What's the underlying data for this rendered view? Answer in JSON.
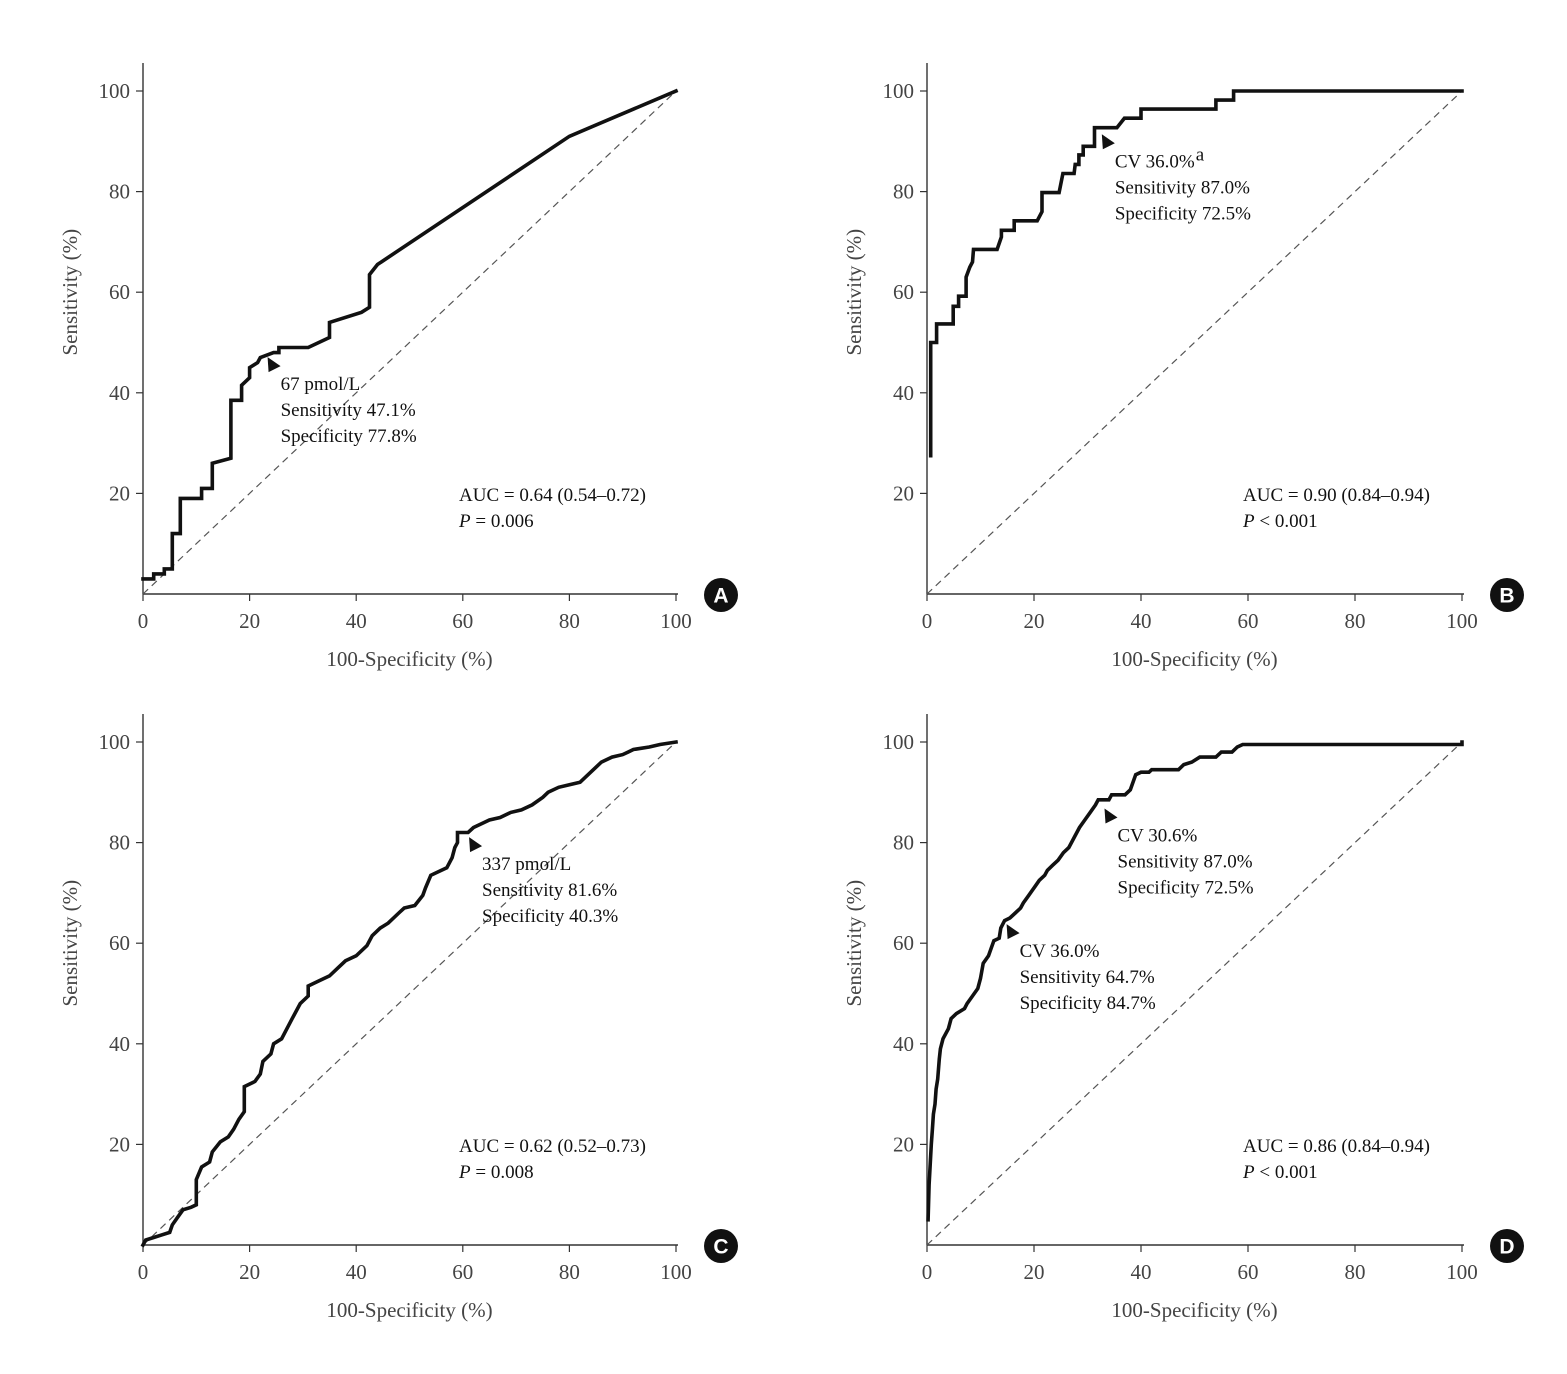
{
  "chart_data": [
    {
      "panel_label": "A",
      "type": "line",
      "xlabel": "100-Specificity (%)",
      "ylabel": "Sensitivity (%)",
      "xlim": [
        0,
        100
      ],
      "ylim": [
        0,
        100
      ],
      "xticks": [
        "0",
        "20",
        "40",
        "60",
        "80",
        "100"
      ],
      "yticks": [
        "20",
        "40",
        "60",
        "80",
        "100"
      ],
      "reference_line": [
        [
          0,
          0
        ],
        [
          100,
          100
        ]
      ],
      "roc": [
        [
          0,
          3
        ],
        [
          2,
          3
        ],
        [
          2,
          4
        ],
        [
          4,
          4
        ],
        [
          4,
          5
        ],
        [
          5.5,
          5
        ],
        [
          5.5,
          12
        ],
        [
          7,
          12
        ],
        [
          7,
          19
        ],
        [
          11,
          19
        ],
        [
          11,
          21
        ],
        [
          13,
          21
        ],
        [
          13,
          26
        ],
        [
          16.5,
          27
        ],
        [
          16.5,
          38.5
        ],
        [
          18.5,
          38.5
        ],
        [
          18.5,
          41.5
        ],
        [
          20,
          43
        ],
        [
          20,
          45
        ],
        [
          21.5,
          46
        ],
        [
          22,
          47
        ],
        [
          24.5,
          48
        ],
        [
          25.5,
          48
        ],
        [
          25.5,
          49
        ],
        [
          31,
          49
        ],
        [
          35,
          51
        ],
        [
          35,
          54
        ],
        [
          41,
          56
        ],
        [
          42.5,
          57
        ],
        [
          42.5,
          63.5
        ],
        [
          44,
          65.5
        ],
        [
          80,
          91
        ],
        [
          100,
          100
        ]
      ],
      "annotations": [
        {
          "point": [
            24.5,
            45.5
          ],
          "lines": [
            "67 pmol/L",
            "Sensitivity 47.1%",
            "Specificity 77.8%"
          ]
        }
      ],
      "stats": {
        "auc": "AUC = 0.64 (0.54–0.72)",
        "p_prefix": "P",
        "p_value": " = 0.006"
      }
    },
    {
      "panel_label": "B",
      "type": "line",
      "xlabel": "100-Specificity (%)",
      "ylabel": "Sensitivity (%)",
      "xlim": [
        0,
        100
      ],
      "ylim": [
        0,
        100
      ],
      "xticks": [
        "0",
        "20",
        "40",
        "60",
        "80",
        "100"
      ],
      "yticks": [
        "20",
        "40",
        "60",
        "80",
        "100"
      ],
      "reference_line": [
        [
          0,
          0
        ],
        [
          100,
          100
        ]
      ],
      "roc": [
        [
          0.7,
          27.5
        ],
        [
          0.7,
          50
        ],
        [
          1.8,
          50
        ],
        [
          1.8,
          53.7
        ],
        [
          4.9,
          53.7
        ],
        [
          4.9,
          57.2
        ],
        [
          5.9,
          57.2
        ],
        [
          5.9,
          59.2
        ],
        [
          7.3,
          59.2
        ],
        [
          7.3,
          63
        ],
        [
          8,
          65
        ],
        [
          8.5,
          66
        ],
        [
          8.7,
          68.5
        ],
        [
          13.1,
          68.5
        ],
        [
          13.9,
          71
        ],
        [
          13.9,
          72.3
        ],
        [
          16.3,
          72.3
        ],
        [
          16.3,
          74.2
        ],
        [
          20.6,
          74.2
        ],
        [
          21.5,
          76
        ],
        [
          21.5,
          79.8
        ],
        [
          24.7,
          79.8
        ],
        [
          25.4,
          83.6
        ],
        [
          27.5,
          83.6
        ],
        [
          27.7,
          85.4
        ],
        [
          28.4,
          85.4
        ],
        [
          28.4,
          87.3
        ],
        [
          29.2,
          87.3
        ],
        [
          29.2,
          89
        ],
        [
          31.3,
          89
        ],
        [
          31.3,
          92.7
        ],
        [
          35.5,
          92.7
        ],
        [
          36.9,
          94.6
        ],
        [
          40,
          94.6
        ],
        [
          40,
          96.4
        ],
        [
          54,
          96.4
        ],
        [
          54,
          98.2
        ],
        [
          57.3,
          98.2
        ],
        [
          57.3,
          100
        ],
        [
          100,
          100
        ]
      ],
      "annotations": [
        {
          "point": [
            33.8,
            89.8
          ],
          "lines": [
            "CV 36.0%",
            "Sensitivity 87.0%",
            "Specificity 72.5%"
          ],
          "superscript": "a"
        }
      ],
      "stats": {
        "auc": "AUC = 0.90 (0.84–0.94)",
        "p_prefix": "P",
        "p_value": " < 0.001"
      }
    },
    {
      "panel_label": "C",
      "type": "line",
      "xlabel": "100-Specificity (%)",
      "ylabel": "Sensitivity (%)",
      "xlim": [
        0,
        100
      ],
      "ylim": [
        0,
        100
      ],
      "xticks": [
        "0",
        "20",
        "40",
        "60",
        "80",
        "100"
      ],
      "yticks": [
        "20",
        "40",
        "60",
        "80",
        "100"
      ],
      "reference_line": [
        [
          0,
          0
        ],
        [
          100,
          100
        ]
      ],
      "roc": [
        [
          0,
          0
        ],
        [
          0.5,
          1
        ],
        [
          2,
          1.5
        ],
        [
          3.5,
          2
        ],
        [
          5,
          2.5
        ],
        [
          5.5,
          4
        ],
        [
          6.5,
          5.5
        ],
        [
          7.5,
          7
        ],
        [
          9,
          7.5
        ],
        [
          10,
          8
        ],
        [
          10,
          13
        ],
        [
          11,
          15.5
        ],
        [
          12.5,
          16.5
        ],
        [
          13,
          18.5
        ],
        [
          14.5,
          20.5
        ],
        [
          16,
          21.5
        ],
        [
          17,
          23
        ],
        [
          18,
          25
        ],
        [
          19,
          26.5
        ],
        [
          19,
          31.5
        ],
        [
          21,
          32.5
        ],
        [
          22,
          34
        ],
        [
          22.5,
          36.5
        ],
        [
          24,
          38
        ],
        [
          24.5,
          40
        ],
        [
          26,
          41
        ],
        [
          27,
          43
        ],
        [
          28,
          45
        ],
        [
          29.5,
          48
        ],
        [
          31,
          49.5
        ],
        [
          31,
          51.5
        ],
        [
          33,
          52.5
        ],
        [
          35,
          53.5
        ],
        [
          36.5,
          55
        ],
        [
          38,
          56.5
        ],
        [
          40,
          57.5
        ],
        [
          42,
          59.5
        ],
        [
          43,
          61.5
        ],
        [
          44.5,
          63
        ],
        [
          46,
          64
        ],
        [
          48,
          66
        ],
        [
          49,
          67
        ],
        [
          51,
          67.5
        ],
        [
          52.5,
          69.5
        ],
        [
          53,
          71
        ],
        [
          54,
          73.5
        ],
        [
          56,
          74.5
        ],
        [
          57,
          75
        ],
        [
          58,
          77
        ],
        [
          58.5,
          79
        ],
        [
          59,
          80
        ],
        [
          59,
          82
        ],
        [
          61,
          82
        ],
        [
          62,
          83
        ],
        [
          64,
          84
        ],
        [
          65,
          84.5
        ],
        [
          67,
          85
        ],
        [
          69,
          86
        ],
        [
          71,
          86.5
        ],
        [
          73,
          87.5
        ],
        [
          75,
          89
        ],
        [
          76,
          90
        ],
        [
          78,
          91
        ],
        [
          80,
          91.5
        ],
        [
          82,
          92
        ],
        [
          83,
          93
        ],
        [
          84,
          94
        ],
        [
          85,
          95
        ],
        [
          86,
          96
        ],
        [
          88,
          97
        ],
        [
          90,
          97.5
        ],
        [
          91,
          98
        ],
        [
          92,
          98.5
        ],
        [
          95,
          99
        ],
        [
          97,
          99.5
        ],
        [
          100,
          100
        ]
      ],
      "annotations": [
        {
          "point": [
            62.3,
            79.5
          ],
          "lines": [
            "337 pmol/L",
            "Sensitivity 81.6%",
            "Specificity 40.3%"
          ]
        }
      ],
      "stats": {
        "auc": "AUC = 0.62 (0.52–0.73)",
        "p_prefix": "P",
        "p_value": " = 0.008"
      }
    },
    {
      "panel_label": "D",
      "type": "line",
      "xlabel": "100-Specificity (%)",
      "ylabel": "Sensitivity (%)",
      "xlim": [
        0,
        100
      ],
      "ylim": [
        0,
        100
      ],
      "xticks": [
        "0",
        "20",
        "40",
        "60",
        "80",
        "100"
      ],
      "yticks": [
        "20",
        "40",
        "60",
        "80",
        "100"
      ],
      "reference_line": [
        [
          0,
          0
        ],
        [
          100,
          100
        ]
      ],
      "roc": [
        [
          0.2,
          5
        ],
        [
          0.4,
          12
        ],
        [
          0.6,
          16
        ],
        [
          0.8,
          20
        ],
        [
          1,
          23
        ],
        [
          1.2,
          26
        ],
        [
          1.5,
          28
        ],
        [
          1.7,
          31
        ],
        [
          2,
          33
        ],
        [
          2.3,
          37
        ],
        [
          2.5,
          39
        ],
        [
          3,
          41
        ],
        [
          4,
          43
        ],
        [
          4.5,
          45
        ],
        [
          5.5,
          46
        ],
        [
          7,
          47
        ],
        [
          7.5,
          48
        ],
        [
          8.5,
          49.5
        ],
        [
          9.5,
          51
        ],
        [
          10,
          53
        ],
        [
          10.5,
          56
        ],
        [
          11.5,
          57.5
        ],
        [
          12,
          59
        ],
        [
          12.5,
          60.5
        ],
        [
          13.5,
          61
        ],
        [
          13.8,
          63
        ],
        [
          14.5,
          64.5
        ],
        [
          15.5,
          65
        ],
        [
          16.5,
          66
        ],
        [
          17.5,
          67
        ],
        [
          18,
          68
        ],
        [
          19,
          69.5
        ],
        [
          20,
          71
        ],
        [
          21,
          72.5
        ],
        [
          22,
          73.5
        ],
        [
          22.5,
          74.5
        ],
        [
          23.5,
          75.5
        ],
        [
          24.5,
          76.5
        ],
        [
          25.5,
          78
        ],
        [
          26.5,
          79
        ],
        [
          27.5,
          81
        ],
        [
          28.5,
          83
        ],
        [
          29.5,
          84.5
        ],
        [
          30.5,
          86
        ],
        [
          31.5,
          87.5
        ],
        [
          32,
          88.5
        ],
        [
          34,
          88.5
        ],
        [
          34.5,
          89.5
        ],
        [
          37,
          89.5
        ],
        [
          38,
          90.5
        ],
        [
          39,
          93.5
        ],
        [
          40,
          94
        ],
        [
          41.5,
          94
        ],
        [
          42,
          94.5
        ],
        [
          47,
          94.5
        ],
        [
          48,
          95.5
        ],
        [
          49.5,
          96
        ],
        [
          51,
          97
        ],
        [
          54,
          97
        ],
        [
          55,
          98
        ],
        [
          57,
          98
        ],
        [
          58,
          99
        ],
        [
          59,
          99.5
        ],
        [
          100,
          99.5
        ],
        [
          100,
          100
        ]
      ],
      "annotations": [
        {
          "point": [
            34.3,
            85.2
          ],
          "lines": [
            "CV 30.6%",
            "Sensitivity 87.0%",
            "Specificity 72.5%"
          ]
        },
        {
          "point": [
            16,
            62.2
          ],
          "lines": [
            "CV 36.0%",
            "Sensitivity 64.7%",
            "Specificity 84.7%"
          ]
        }
      ],
      "stats": {
        "auc": "AUC = 0.86 (0.84–0.94)",
        "p_prefix": "P",
        "p_value": " < 0.001"
      }
    }
  ]
}
